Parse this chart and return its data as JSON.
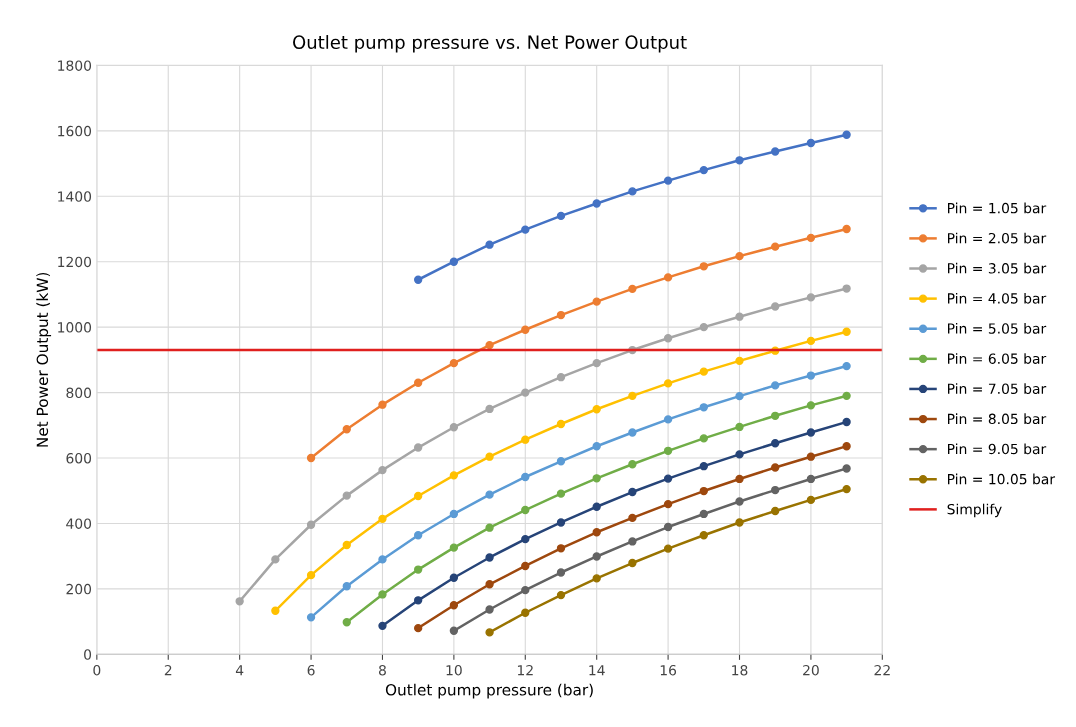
{
  "chart_data": {
    "type": "line",
    "title": "Outlet pump pressure vs. Net Power Output",
    "xlabel": "Outlet pump pressure (bar)",
    "ylabel": "Net Power Output (kW)",
    "xlim": [
      0,
      22
    ],
    "xticks": [
      0,
      2,
      4,
      6,
      8,
      10,
      12,
      14,
      16,
      18,
      20,
      22
    ],
    "ylim": [
      0,
      1800
    ],
    "yticks": [
      0,
      200,
      400,
      600,
      800,
      1000,
      1200,
      1400,
      1600,
      1800
    ],
    "grid": true,
    "legend": "right",
    "marker": "circle",
    "line_style": "solid",
    "series": [
      {
        "name": "Pin = 1.05 bar",
        "color": "#4472c4",
        "x": [
          9,
          10,
          11,
          12,
          13,
          14,
          15,
          16,
          17,
          18,
          19,
          20,
          21
        ],
        "values": [
          1145,
          1200,
          1252,
          1298,
          1340,
          1378,
          1415,
          1448,
          1480,
          1510,
          1537,
          1563,
          1588
        ]
      },
      {
        "name": "Pin = 2.05 bar",
        "color": "#ed7d31",
        "x": [
          6,
          7,
          8,
          9,
          10,
          11,
          12,
          13,
          14,
          15,
          16,
          17,
          18,
          19,
          20,
          21
        ],
        "values": [
          600,
          688,
          763,
          830,
          890,
          945,
          992,
          1037,
          1078,
          1117,
          1152,
          1186,
          1217,
          1246,
          1273,
          1300
        ]
      },
      {
        "name": "Pin = 3.05 bar",
        "color": "#a5a5a5",
        "x": [
          4,
          5,
          6,
          7,
          8,
          9,
          10,
          11,
          12,
          13,
          14,
          15,
          16,
          17,
          18,
          19,
          20,
          21
        ],
        "values": [
          162,
          290,
          396,
          485,
          563,
          632,
          694,
          750,
          800,
          847,
          890,
          930,
          966,
          1000,
          1032,
          1063,
          1091,
          1118
        ]
      },
      {
        "name": "Pin = 4.05 bar",
        "color": "#ffc000",
        "x": [
          5,
          6,
          7,
          8,
          9,
          10,
          11,
          12,
          13,
          14,
          15,
          16,
          17,
          18,
          19,
          20,
          21
        ],
        "values": [
          133,
          242,
          334,
          414,
          484,
          547,
          604,
          656,
          704,
          749,
          790,
          828,
          864,
          897,
          928,
          958,
          986
        ]
      },
      {
        "name": "Pin = 5.05 bar",
        "color": "#5b9bd5",
        "x": [
          6,
          7,
          8,
          9,
          10,
          11,
          12,
          13,
          14,
          15,
          16,
          17,
          18,
          19,
          20,
          21
        ],
        "values": [
          113,
          208,
          290,
          364,
          429,
          488,
          542,
          590,
          636,
          678,
          718,
          755,
          789,
          822,
          852,
          881
        ]
      },
      {
        "name": "Pin = 6.05 bar",
        "color": "#70ad47",
        "x": [
          7,
          8,
          9,
          10,
          11,
          12,
          13,
          14,
          15,
          16,
          17,
          18,
          19,
          20,
          21
        ],
        "values": [
          98,
          183,
          259,
          326,
          387,
          441,
          491,
          538,
          581,
          622,
          660,
          695,
          729,
          761,
          790
        ]
      },
      {
        "name": "Pin = 7.05 bar",
        "color": "#264478",
        "x": [
          8,
          9,
          10,
          11,
          12,
          13,
          14,
          15,
          16,
          17,
          18,
          19,
          20,
          21
        ],
        "values": [
          87,
          165,
          234,
          296,
          352,
          403,
          451,
          496,
          537,
          575,
          611,
          645,
          678,
          710
        ]
      },
      {
        "name": "Pin = 8.05 bar",
        "color": "#9e480e",
        "x": [
          9,
          10,
          11,
          12,
          13,
          14,
          15,
          16,
          17,
          18,
          19,
          20,
          21
        ],
        "values": [
          80,
          150,
          214,
          270,
          324,
          373,
          417,
          459,
          499,
          536,
          571,
          604,
          636
        ]
      },
      {
        "name": "Pin = 9.05 bar",
        "color": "#636363",
        "x": [
          10,
          11,
          12,
          13,
          14,
          15,
          16,
          17,
          18,
          19,
          20,
          21
        ],
        "values": [
          72,
          137,
          196,
          250,
          299,
          345,
          389,
          429,
          467,
          502,
          536,
          568
        ]
      },
      {
        "name": "Pin = 10.05 bar",
        "color": "#997300",
        "x": [
          11,
          12,
          13,
          14,
          15,
          16,
          17,
          18,
          19,
          20,
          21
        ],
        "values": [
          67,
          127,
          181,
          232,
          279,
          323,
          364,
          403,
          438,
          472,
          505
        ]
      }
    ],
    "ref_lines": [
      {
        "axis": "y",
        "value": 930,
        "label": "Simplify",
        "color": "#e0201e",
        "line_style": "solid"
      }
    ]
  }
}
